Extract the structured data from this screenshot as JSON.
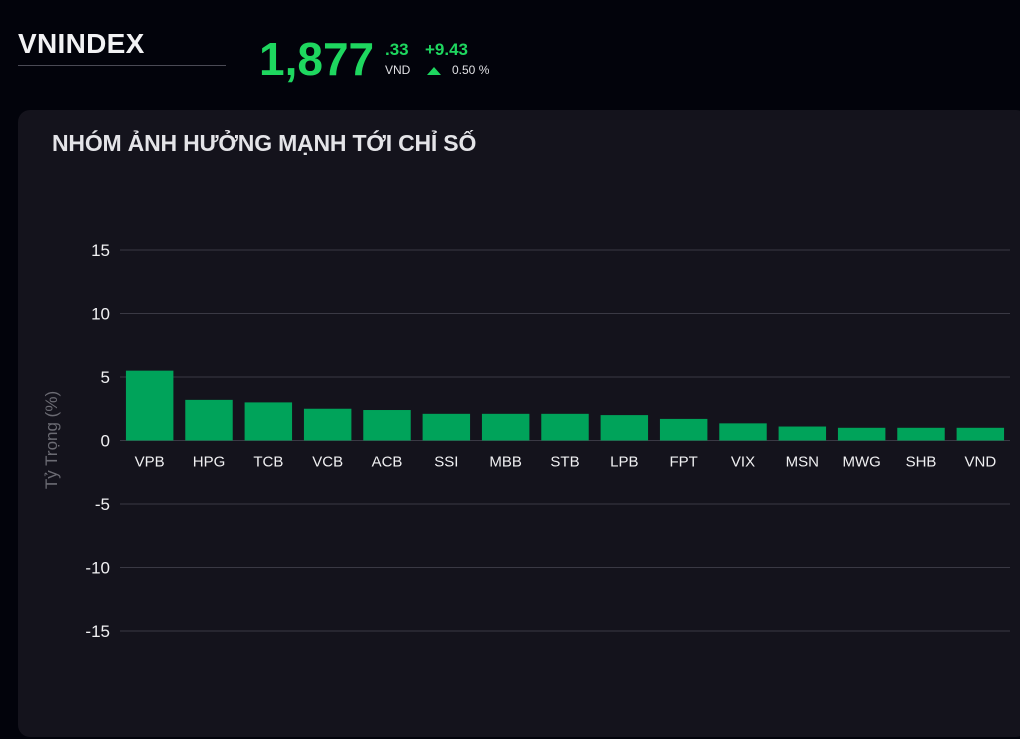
{
  "header": {
    "index_name": "VNINDEX",
    "price_integer": "1,877",
    "price_decimal": ".33",
    "currency": "VND",
    "change_value": "+9.43",
    "change_percent": "0.50 %",
    "direction_icon": "triangle-up-icon"
  },
  "colors": {
    "positive": "#1ed75f",
    "bar": "#00a35a",
    "grid": "#3a3944",
    "panel_bg": "#14131c",
    "page_bg": "#02030b"
  },
  "panel": {
    "title": "NHÓM ẢNH HƯỞNG MẠNH TỚI CHỈ SỐ"
  },
  "chart_data": {
    "type": "bar",
    "title": "NHÓM ẢNH HƯỞNG MẠNH TỚI CHỈ SỐ",
    "xlabel": "",
    "ylabel": "Tỷ Trọng (%)",
    "ylim": [
      -15,
      15
    ],
    "yticks": [
      15,
      10,
      5,
      0,
      -5,
      -10,
      -15
    ],
    "grid": true,
    "legend": "none",
    "categories": [
      "VPB",
      "HPG",
      "TCB",
      "VCB",
      "ACB",
      "SSI",
      "MBB",
      "STB",
      "LPB",
      "FPT",
      "VIX",
      "MSN",
      "MWG",
      "SHB",
      "VND"
    ],
    "values": [
      5.5,
      3.2,
      3.0,
      2.5,
      2.4,
      2.1,
      2.1,
      2.1,
      2.0,
      1.7,
      1.35,
      1.1,
      1.0,
      1.0,
      1.0
    ]
  }
}
